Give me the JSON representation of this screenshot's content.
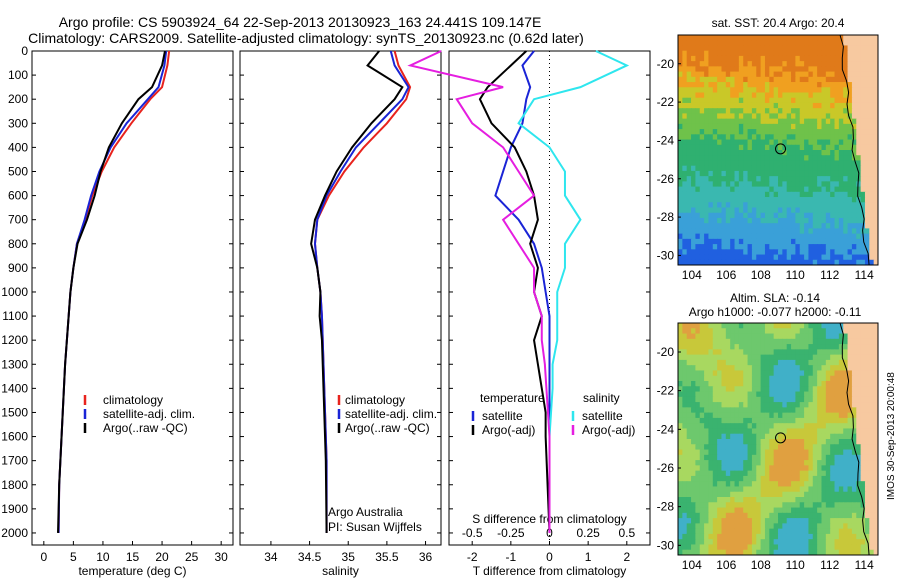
{
  "header": {
    "line1": "Argo profile: CS 5903924_64 22-Sep-2013 20130923_163 24.441S 109.147E",
    "line2": "Climatology: CARS2009. Satellite-adjusted climatology: synTS_20130923.nc (0.62d later)"
  },
  "colors": {
    "climatology": "#e8231d",
    "satellite": "#1a24d6",
    "argo": "#000000",
    "sal_sat": "#2ee6ee",
    "sal_argo": "#e51ee0"
  },
  "chart_data": [
    {
      "type": "line",
      "panel": "temperature",
      "xlabel": "temperature (deg C)",
      "xlim": [
        -2,
        32
      ],
      "xticks": [
        "0",
        "5",
        "10",
        "15",
        "20",
        "25",
        "30"
      ],
      "ylim": [
        2050,
        0
      ],
      "yticks": [
        "0",
        "100",
        "200",
        "300",
        "400",
        "500",
        "600",
        "700",
        "800",
        "900",
        "1000",
        "1100",
        "1200",
        "1300",
        "1400",
        "1500",
        "1600",
        "1700",
        "1800",
        "1900",
        "2000"
      ],
      "legend": [
        "climatology",
        "satellite-adj. clim.",
        "Argo(..raw -QC)"
      ],
      "series": [
        {
          "name": "climatology",
          "x": [
            21.2,
            20.9,
            20.0,
            18.0,
            14.8,
            11.9,
            9.8,
            8.2,
            7.0,
            5.6,
            5.0,
            4.5,
            4.2,
            3.9,
            3.6,
            3.4,
            3.2,
            3.0,
            2.8,
            2.6,
            2.5
          ],
          "y": [
            0,
            60,
            150,
            200,
            300,
            400,
            500,
            600,
            700,
            800,
            900,
            1000,
            1100,
            1200,
            1300,
            1400,
            1500,
            1600,
            1700,
            1800,
            2000
          ]
        },
        {
          "name": "satellite-adj. clim.",
          "x": [
            20.7,
            20.4,
            19.4,
            17.6,
            14.0,
            11.3,
            9.4,
            8.0,
            6.9,
            5.6,
            5.0,
            4.5,
            4.2,
            3.9,
            3.6,
            3.4,
            3.2,
            3.0,
            2.8,
            2.6,
            2.5
          ],
          "y": [
            0,
            60,
            150,
            200,
            300,
            400,
            500,
            600,
            700,
            800,
            900,
            1000,
            1100,
            1200,
            1300,
            1400,
            1500,
            1600,
            1700,
            1800,
            2000
          ]
        },
        {
          "name": "Argo(..raw -QC)",
          "x": [
            20.5,
            20.0,
            18.3,
            16.0,
            13.2,
            11.0,
            9.6,
            8.6,
            7.3,
            5.7,
            5.0,
            4.5,
            4.2,
            3.9,
            3.6,
            3.4,
            3.2,
            3.0,
            2.8,
            2.6,
            2.4
          ],
          "y": [
            0,
            60,
            150,
            200,
            300,
            400,
            500,
            600,
            700,
            800,
            900,
            1000,
            1100,
            1200,
            1300,
            1400,
            1500,
            1600,
            1700,
            1800,
            2000
          ]
        }
      ]
    },
    {
      "type": "line",
      "panel": "salinity",
      "xlabel": "salinity",
      "xlim": [
        33.6,
        36.2
      ],
      "xticks": [
        "34",
        "34.5",
        "35",
        "35.5",
        "36"
      ],
      "ylim": [
        2050,
        0
      ],
      "legend": [
        "climatology",
        "satellite-adj. clim.",
        "Argo(..raw -QC)"
      ],
      "annotation": [
        "Argo Australia",
        "PI: Susan Wijffels"
      ],
      "series": [
        {
          "name": "climatology",
          "x": [
            35.6,
            35.65,
            35.8,
            35.75,
            35.5,
            35.2,
            34.95,
            34.75,
            34.6,
            34.57,
            34.6,
            34.64,
            34.66,
            34.67,
            34.68,
            34.69,
            34.7,
            34.71,
            34.72,
            34.72
          ],
          "y": [
            0,
            60,
            150,
            200,
            300,
            400,
            500,
            600,
            700,
            800,
            900,
            1000,
            1100,
            1200,
            1300,
            1400,
            1500,
            1600,
            1700,
            2000
          ]
        },
        {
          "name": "satellite-adj. clim.",
          "x": [
            35.55,
            35.6,
            35.78,
            35.7,
            35.4,
            35.1,
            34.9,
            34.72,
            34.6,
            34.57,
            34.6,
            34.64,
            34.66,
            34.67,
            34.68,
            34.69,
            34.7,
            34.71,
            34.72,
            34.72
          ],
          "y": [
            0,
            60,
            150,
            200,
            300,
            400,
            500,
            600,
            700,
            800,
            900,
            1000,
            1100,
            1200,
            1300,
            1400,
            1500,
            1600,
            1700,
            2000
          ]
        },
        {
          "name": "Argo(..raw -QC)",
          "x": [
            35.4,
            35.25,
            35.7,
            35.6,
            35.3,
            35.05,
            34.85,
            34.7,
            34.57,
            34.52,
            34.6,
            34.64,
            34.63,
            34.66,
            34.67,
            34.68,
            34.69,
            34.7,
            34.71,
            34.72
          ],
          "y": [
            0,
            60,
            150,
            200,
            300,
            400,
            500,
            600,
            700,
            800,
            900,
            1000,
            1100,
            1200,
            1300,
            1400,
            1500,
            1600,
            1700,
            2000
          ]
        }
      ]
    },
    {
      "type": "line",
      "panel": "difference",
      "xlabel_bottom": "T difference from climatology",
      "xlabel_top": "S difference from climatology",
      "xlim": [
        -2.6,
        2.6
      ],
      "xticks": [
        "-2",
        "-1",
        "0",
        "1",
        "2"
      ],
      "xticks_top": [
        "-0.5",
        "-0.25",
        "0",
        "0.25",
        "0.5"
      ],
      "ylim": [
        2050,
        0
      ],
      "legend_temperature_title": "temperature",
      "legend_temperature": [
        "satellite",
        "Argo(-adj)"
      ],
      "legend_salinity_title": "salinity",
      "legend_salinity": [
        "satellite",
        "Argo(-adj)"
      ],
      "series": [
        {
          "name": "temperature satellite",
          "x": [
            -0.4,
            -0.7,
            -0.5,
            -0.6,
            -0.7,
            -1.0,
            -1.2,
            -1.4,
            -0.8,
            -0.4,
            -0.2,
            -0.1,
            0,
            0,
            0,
            0,
            0,
            0,
            0
          ],
          "y": [
            0,
            60,
            150,
            200,
            300,
            400,
            500,
            600,
            700,
            800,
            900,
            1000,
            1100,
            1200,
            1300,
            1400,
            1500,
            1600,
            2000
          ]
        },
        {
          "name": "temperature Argo(-adj)",
          "x": [
            -0.6,
            -1.0,
            -1.6,
            -1.8,
            -1.5,
            -0.9,
            -0.6,
            -0.4,
            -0.3,
            -0.5,
            -0.3,
            -0.4,
            -0.2,
            -0.4,
            -0.3,
            -0.2,
            -0.1,
            -0.1,
            0
          ],
          "y": [
            0,
            60,
            150,
            200,
            300,
            400,
            500,
            600,
            700,
            800,
            900,
            1000,
            1100,
            1200,
            1300,
            1400,
            1500,
            1600,
            2000
          ]
        },
        {
          "name": "salinity satellite",
          "x": [
            0.3,
            0.5,
            0.2,
            -0.1,
            -0.2,
            0.0,
            0.1,
            0.1,
            0.2,
            0.1,
            0.1,
            0.05,
            0.05,
            0.05,
            0.02,
            0.02,
            0.01,
            0,
            0
          ],
          "y": [
            0,
            60,
            150,
            200,
            300,
            400,
            500,
            600,
            700,
            800,
            900,
            1000,
            1100,
            1200,
            1300,
            1400,
            1500,
            1600,
            2000
          ]
        },
        {
          "name": "salinity Argo(-adj)",
          "x": [
            -0.7,
            -0.9,
            -0.3,
            -0.6,
            -0.5,
            -0.3,
            -0.2,
            -0.1,
            -0.3,
            -0.2,
            -0.1,
            -0.1,
            -0.05,
            -0.05,
            -0.03,
            -0.02,
            -0.01,
            0,
            0
          ],
          "y": [
            0,
            60,
            150,
            200,
            300,
            400,
            500,
            600,
            700,
            800,
            900,
            1000,
            1100,
            1200,
            1300,
            1400,
            1500,
            1600,
            2000
          ]
        }
      ]
    },
    {
      "type": "heatmap",
      "panel": "sst-map",
      "title": "sat. SST: 20.4  Argo: 20.4",
      "xticks": [
        "104",
        "106",
        "108",
        "110",
        "112",
        "114"
      ],
      "yticks": [
        "-20",
        "-22",
        "-24",
        "-26",
        "-28",
        "-30"
      ],
      "xlim": [
        103.2,
        114.8
      ],
      "ylim": [
        -30.5,
        -18.5
      ],
      "marker": {
        "lon": 109.147,
        "lat": -24.441
      }
    },
    {
      "type": "heatmap",
      "panel": "sla-map",
      "title_line1": "Altim. SLA: -0.14",
      "title_line2": "Argo h1000: -0.077  h2000: -0.11",
      "xticks": [
        "104",
        "106",
        "108",
        "110",
        "112",
        "114"
      ],
      "yticks": [
        "-20",
        "-22",
        "-24",
        "-26",
        "-28",
        "-30"
      ],
      "xlim": [
        103.2,
        114.8
      ],
      "ylim": [
        -30.5,
        -18.5
      ],
      "marker": {
        "lon": 109.147,
        "lat": -24.441
      }
    }
  ],
  "side_label": "IMOS 30-Sep-2013 20:00:48"
}
